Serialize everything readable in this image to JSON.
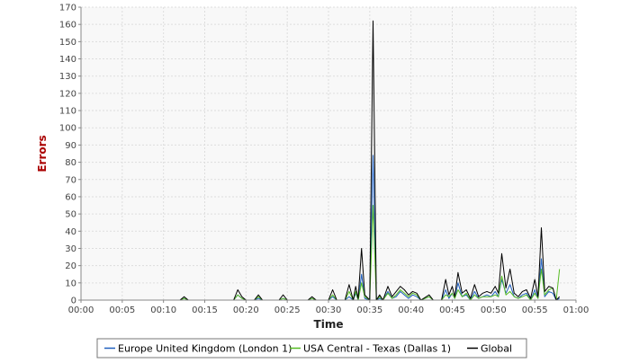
{
  "chart_data": {
    "type": "line",
    "xlabel": "Time",
    "ylabel": "Errors",
    "ylim": [
      0,
      170
    ],
    "yticks": [
      0,
      10,
      20,
      30,
      40,
      50,
      60,
      70,
      80,
      90,
      100,
      110,
      120,
      130,
      140,
      150,
      160,
      170
    ],
    "xlim": [
      "00:00",
      "01:00"
    ],
    "xticks": [
      "00:00",
      "00:05",
      "00:10",
      "00:15",
      "00:20",
      "00:25",
      "00:30",
      "00:35",
      "00:40",
      "00:45",
      "00:50",
      "00:55",
      "01:00"
    ],
    "grid": true,
    "legend_position": "bottom",
    "colors": {
      "axis": "#888888",
      "grid": "#dddddd",
      "plot_bg": "#f8f8f8",
      "ylabel": "#aa0000"
    },
    "series": [
      {
        "name": "Europe United Kingdom (London 1)",
        "color": "#1f5fbf",
        "points": [
          [
            "00:03",
            0
          ],
          [
            "00:12",
            0
          ],
          [
            "00:12.5",
            1
          ],
          [
            "00:13",
            0
          ],
          [
            "00:18.5",
            0
          ],
          [
            "00:19",
            3
          ],
          [
            "00:19.5",
            1
          ],
          [
            "00:20",
            0
          ],
          [
            "00:21",
            0
          ],
          [
            "00:21.5",
            1
          ],
          [
            "00:22",
            0
          ],
          [
            "00:24",
            0
          ],
          [
            "00:24.5",
            1
          ],
          [
            "00:25",
            0
          ],
          [
            "00:27.5",
            0
          ],
          [
            "00:28",
            1
          ],
          [
            "00:28.5",
            0
          ],
          [
            "00:30",
            0
          ],
          [
            "00:30.5",
            2
          ],
          [
            "00:31",
            0
          ],
          [
            "00:32",
            0
          ],
          [
            "00:32.5",
            2
          ],
          [
            "00:33",
            0
          ],
          [
            "00:33.3",
            4
          ],
          [
            "00:33.6",
            0
          ],
          [
            "00:34",
            15
          ],
          [
            "00:34.4",
            1
          ],
          [
            "00:35",
            0
          ],
          [
            "00:35.4",
            84
          ],
          [
            "00:35.8",
            0
          ],
          [
            "00:36.2",
            1
          ],
          [
            "00:36.6",
            0
          ],
          [
            "00:37.2",
            5
          ],
          [
            "00:37.7",
            1
          ],
          [
            "00:38.2",
            2
          ],
          [
            "00:38.7",
            5
          ],
          [
            "00:39.2",
            3
          ],
          [
            "00:39.7",
            1
          ],
          [
            "00:40.2",
            3
          ],
          [
            "00:40.7",
            2
          ],
          [
            "00:41.2",
            0
          ],
          [
            "00:42.2",
            2
          ],
          [
            "00:42.7",
            0
          ],
          [
            "00:43.7",
            0
          ],
          [
            "00:44.2",
            6
          ],
          [
            "00:44.6",
            1
          ],
          [
            "00:45",
            4
          ],
          [
            "00:45.3",
            1
          ],
          [
            "00:45.7",
            10
          ],
          [
            "00:46.2",
            2
          ],
          [
            "00:46.7",
            3
          ],
          [
            "00:47.2",
            0
          ],
          [
            "00:47.7",
            5
          ],
          [
            "00:48.2",
            1
          ],
          [
            "00:48.7",
            2
          ],
          [
            "00:49.2",
            3
          ],
          [
            "00:49.7",
            2
          ],
          [
            "00:50.2",
            5
          ],
          [
            "00:50.6",
            2
          ],
          [
            "00:51",
            12
          ],
          [
            "00:51.5",
            4
          ],
          [
            "00:52",
            9
          ],
          [
            "00:52.5",
            2
          ],
          [
            "00:53",
            1
          ],
          [
            "00:53.5",
            3
          ],
          [
            "00:54",
            4
          ],
          [
            "00:54.5",
            0
          ],
          [
            "00:55",
            6
          ],
          [
            "00:55.4",
            1
          ],
          [
            "00:55.8",
            24
          ],
          [
            "00:56.2",
            2
          ],
          [
            "00:56.7",
            5
          ],
          [
            "00:57.2",
            4
          ],
          [
            "00:57.6",
            0
          ],
          [
            "00:58",
            1
          ]
        ]
      },
      {
        "name": "USA Central - Texas (Dallas 1)",
        "color": "#55bb22",
        "points": [
          [
            "00:03",
            0
          ],
          [
            "00:12",
            0
          ],
          [
            "00:12.5",
            1
          ],
          [
            "00:13",
            0
          ],
          [
            "00:18.5",
            0
          ],
          [
            "00:19",
            3
          ],
          [
            "00:19.5",
            1
          ],
          [
            "00:20",
            0
          ],
          [
            "00:21",
            0
          ],
          [
            "00:21.5",
            2
          ],
          [
            "00:22",
            0
          ],
          [
            "00:24",
            0
          ],
          [
            "00:24.5",
            1
          ],
          [
            "00:25",
            0
          ],
          [
            "00:27.5",
            0
          ],
          [
            "00:28",
            1
          ],
          [
            "00:28.5",
            0
          ],
          [
            "00:30",
            0
          ],
          [
            "00:30.5",
            3
          ],
          [
            "00:31",
            0
          ],
          [
            "00:32",
            0
          ],
          [
            "00:32.5",
            5
          ],
          [
            "00:33",
            0
          ],
          [
            "00:33.3",
            5
          ],
          [
            "00:33.6",
            0
          ],
          [
            "00:34",
            10
          ],
          [
            "00:34.4",
            2
          ],
          [
            "00:35",
            0
          ],
          [
            "00:35.4",
            55
          ],
          [
            "00:35.8",
            0
          ],
          [
            "00:36.2",
            2
          ],
          [
            "00:36.6",
            0
          ],
          [
            "00:37.2",
            4
          ],
          [
            "00:37.7",
            1
          ],
          [
            "00:38.2",
            3
          ],
          [
            "00:38.7",
            6
          ],
          [
            "00:39.2",
            4
          ],
          [
            "00:39.7",
            2
          ],
          [
            "00:40.2",
            4
          ],
          [
            "00:40.7",
            3
          ],
          [
            "00:41.2",
            0
          ],
          [
            "00:42.2",
            2
          ],
          [
            "00:42.7",
            0
          ],
          [
            "00:43.7",
            0
          ],
          [
            "00:44.2",
            3
          ],
          [
            "00:44.6",
            2
          ],
          [
            "00:45",
            4
          ],
          [
            "00:45.3",
            1
          ],
          [
            "00:45.7",
            6
          ],
          [
            "00:46.2",
            2
          ],
          [
            "00:46.7",
            4
          ],
          [
            "00:47.2",
            0
          ],
          [
            "00:47.7",
            3
          ],
          [
            "00:48.2",
            1
          ],
          [
            "00:48.7",
            2
          ],
          [
            "00:49.2",
            2
          ],
          [
            "00:49.7",
            2
          ],
          [
            "00:50.2",
            3
          ],
          [
            "00:50.6",
            2
          ],
          [
            "00:51",
            14
          ],
          [
            "00:51.5",
            3
          ],
          [
            "00:52",
            5
          ],
          [
            "00:52.5",
            2
          ],
          [
            "00:53",
            1
          ],
          [
            "00:53.5",
            2
          ],
          [
            "00:54",
            3
          ],
          [
            "00:54.5",
            0
          ],
          [
            "00:55",
            4
          ],
          [
            "00:55.4",
            1
          ],
          [
            "00:55.8",
            18
          ],
          [
            "00:56.2",
            3
          ],
          [
            "00:56.7",
            6
          ],
          [
            "00:57.2",
            7
          ],
          [
            "00:57.6",
            0
          ],
          [
            "00:58",
            18
          ]
        ]
      },
      {
        "name": "Global",
        "color": "#000000",
        "points": [
          [
            "00:03",
            0
          ],
          [
            "00:12",
            0
          ],
          [
            "00:12.5",
            2
          ],
          [
            "00:13",
            0
          ],
          [
            "00:18.5",
            0
          ],
          [
            "00:19",
            6
          ],
          [
            "00:19.5",
            2
          ],
          [
            "00:20",
            0
          ],
          [
            "00:21",
            0
          ],
          [
            "00:21.5",
            3
          ],
          [
            "00:22",
            0
          ],
          [
            "00:24",
            0
          ],
          [
            "00:24.5",
            3
          ],
          [
            "00:25",
            0
          ],
          [
            "00:27.5",
            0
          ],
          [
            "00:28",
            2
          ],
          [
            "00:28.5",
            0
          ],
          [
            "00:30",
            0
          ],
          [
            "00:30.5",
            6
          ],
          [
            "00:31",
            0
          ],
          [
            "00:32",
            0
          ],
          [
            "00:32.5",
            9
          ],
          [
            "00:33",
            0
          ],
          [
            "00:33.3",
            8
          ],
          [
            "00:33.6",
            1
          ],
          [
            "00:34",
            30
          ],
          [
            "00:34.4",
            3
          ],
          [
            "00:35",
            0
          ],
          [
            "00:35.4",
            162
          ],
          [
            "00:35.8",
            0
          ],
          [
            "00:36.2",
            3
          ],
          [
            "00:36.6",
            0
          ],
          [
            "00:37.2",
            8
          ],
          [
            "00:37.7",
            2
          ],
          [
            "00:38.2",
            5
          ],
          [
            "00:38.7",
            8
          ],
          [
            "00:39.2",
            6
          ],
          [
            "00:39.7",
            3
          ],
          [
            "00:40.2",
            5
          ],
          [
            "00:40.7",
            4
          ],
          [
            "00:41.2",
            0
          ],
          [
            "00:42.2",
            3
          ],
          [
            "00:42.7",
            0
          ],
          [
            "00:43.7",
            0
          ],
          [
            "00:44.2",
            12
          ],
          [
            "00:44.6",
            3
          ],
          [
            "00:45",
            8
          ],
          [
            "00:45.3",
            2
          ],
          [
            "00:45.7",
            16
          ],
          [
            "00:46.2",
            4
          ],
          [
            "00:46.7",
            6
          ],
          [
            "00:47.2",
            1
          ],
          [
            "00:47.7",
            9
          ],
          [
            "00:48.2",
            2
          ],
          [
            "00:48.7",
            4
          ],
          [
            "00:49.2",
            5
          ],
          [
            "00:49.7",
            4
          ],
          [
            "00:50.2",
            8
          ],
          [
            "00:50.6",
            4
          ],
          [
            "00:51",
            27
          ],
          [
            "00:51.5",
            7
          ],
          [
            "00:52",
            18
          ],
          [
            "00:52.5",
            4
          ],
          [
            "00:53",
            2
          ],
          [
            "00:53.5",
            5
          ],
          [
            "00:54",
            6
          ],
          [
            "00:54.5",
            1
          ],
          [
            "00:55",
            12
          ],
          [
            "00:55.4",
            2
          ],
          [
            "00:55.8",
            42
          ],
          [
            "00:56.2",
            5
          ],
          [
            "00:56.7",
            8
          ],
          [
            "00:57.2",
            7
          ],
          [
            "00:57.6",
            0
          ],
          [
            "00:58",
            2
          ]
        ]
      }
    ]
  }
}
